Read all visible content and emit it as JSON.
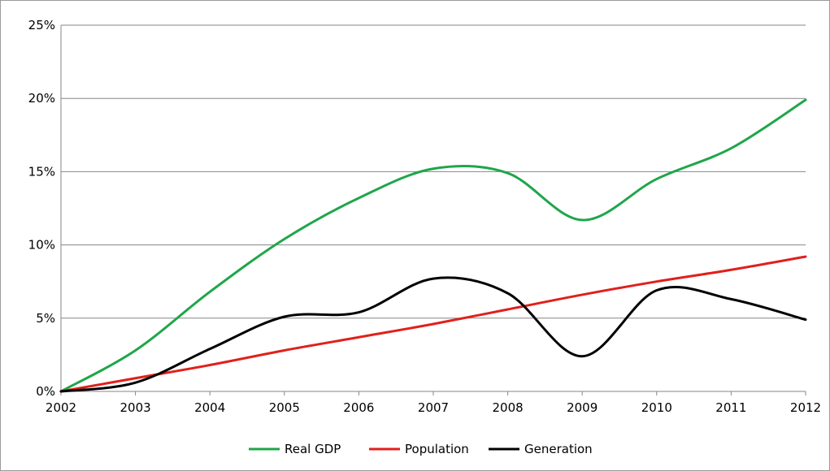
{
  "chart_data": {
    "type": "line",
    "title": "",
    "xlabel": "",
    "ylabel": "",
    "x": [
      "2002",
      "2003",
      "2004",
      "2005",
      "2006",
      "2007",
      "2008",
      "2009",
      "2010",
      "2011",
      "2012"
    ],
    "ylim": [
      0,
      25
    ],
    "yticks": [
      0,
      5,
      10,
      15,
      20,
      25
    ],
    "ytick_labels": [
      "0%",
      "5%",
      "10%",
      "15%",
      "20%",
      "25%"
    ],
    "grid": "horizontal",
    "legend": "bottom",
    "series": [
      {
        "name": "Real GDP",
        "color": "#1fa64a",
        "values": [
          0,
          2.8,
          6.8,
          10.4,
          13.2,
          15.2,
          14.9,
          11.7,
          14.5,
          16.6,
          19.9
        ]
      },
      {
        "name": "Population",
        "color": "#e0201c",
        "values": [
          0,
          0.9,
          1.8,
          2.8,
          3.7,
          4.6,
          5.6,
          6.6,
          7.5,
          8.3,
          9.2
        ]
      },
      {
        "name": "Generation",
        "color": "#000000",
        "values": [
          0,
          0.6,
          2.9,
          5.1,
          5.4,
          7.7,
          6.7,
          2.4,
          6.9,
          6.3,
          4.9
        ]
      }
    ]
  }
}
